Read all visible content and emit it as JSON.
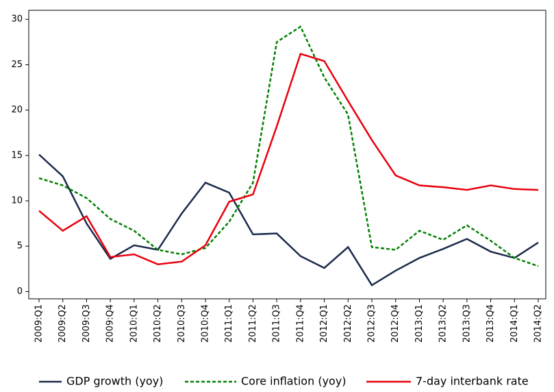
{
  "chart_data": {
    "type": "line",
    "categories": [
      "2009:Q1",
      "2009:Q2",
      "2009:Q3",
      "2009:Q4",
      "2010:Q1",
      "2010:Q2",
      "2010:Q3",
      "2010:Q4",
      "2011:Q1",
      "2011:Q2",
      "2011:Q3",
      "2011:Q4",
      "2012:Q1",
      "2012:Q2",
      "2012:Q3",
      "2012:Q4",
      "2013:Q1",
      "2013:Q2",
      "2013:Q3",
      "2013:Q4",
      "2014:Q1",
      "2014:Q2"
    ],
    "series": [
      {
        "name": "GDP growth (yoy)",
        "color": "#1a2a4a",
        "dash": "solid",
        "values": [
          15.1,
          12.7,
          7.5,
          3.6,
          5.1,
          4.6,
          8.6,
          12.0,
          10.9,
          6.3,
          6.4,
          3.9,
          2.6,
          4.9,
          0.7,
          2.3,
          3.7,
          4.7,
          5.8,
          4.4,
          3.7,
          5.4
        ]
      },
      {
        "name": "Core inflation (yoy)",
        "color": "#008000",
        "dash": "dashed",
        "values": [
          12.5,
          11.7,
          10.3,
          8.0,
          6.7,
          4.6,
          4.1,
          4.8,
          7.7,
          12.0,
          27.5,
          29.2,
          23.6,
          19.5,
          4.9,
          4.6,
          6.7,
          5.7,
          7.3,
          5.6,
          3.7,
          2.8
        ]
      },
      {
        "name": "7-day interbank rate",
        "color": "#e8000b",
        "dash": "solid",
        "values": [
          8.9,
          6.7,
          8.3,
          3.8,
          4.1,
          3.0,
          3.3,
          5.1,
          9.9,
          10.7,
          18.2,
          26.2,
          25.4,
          21.0,
          16.7,
          12.8,
          11.7,
          11.5,
          11.2,
          11.7,
          11.3,
          11.2
        ]
      }
    ],
    "ylim": [
      -0.8,
      31
    ],
    "yticks": [
      0,
      5,
      10,
      15,
      20,
      25,
      30
    ],
    "grid": false,
    "legend": "bottom"
  }
}
